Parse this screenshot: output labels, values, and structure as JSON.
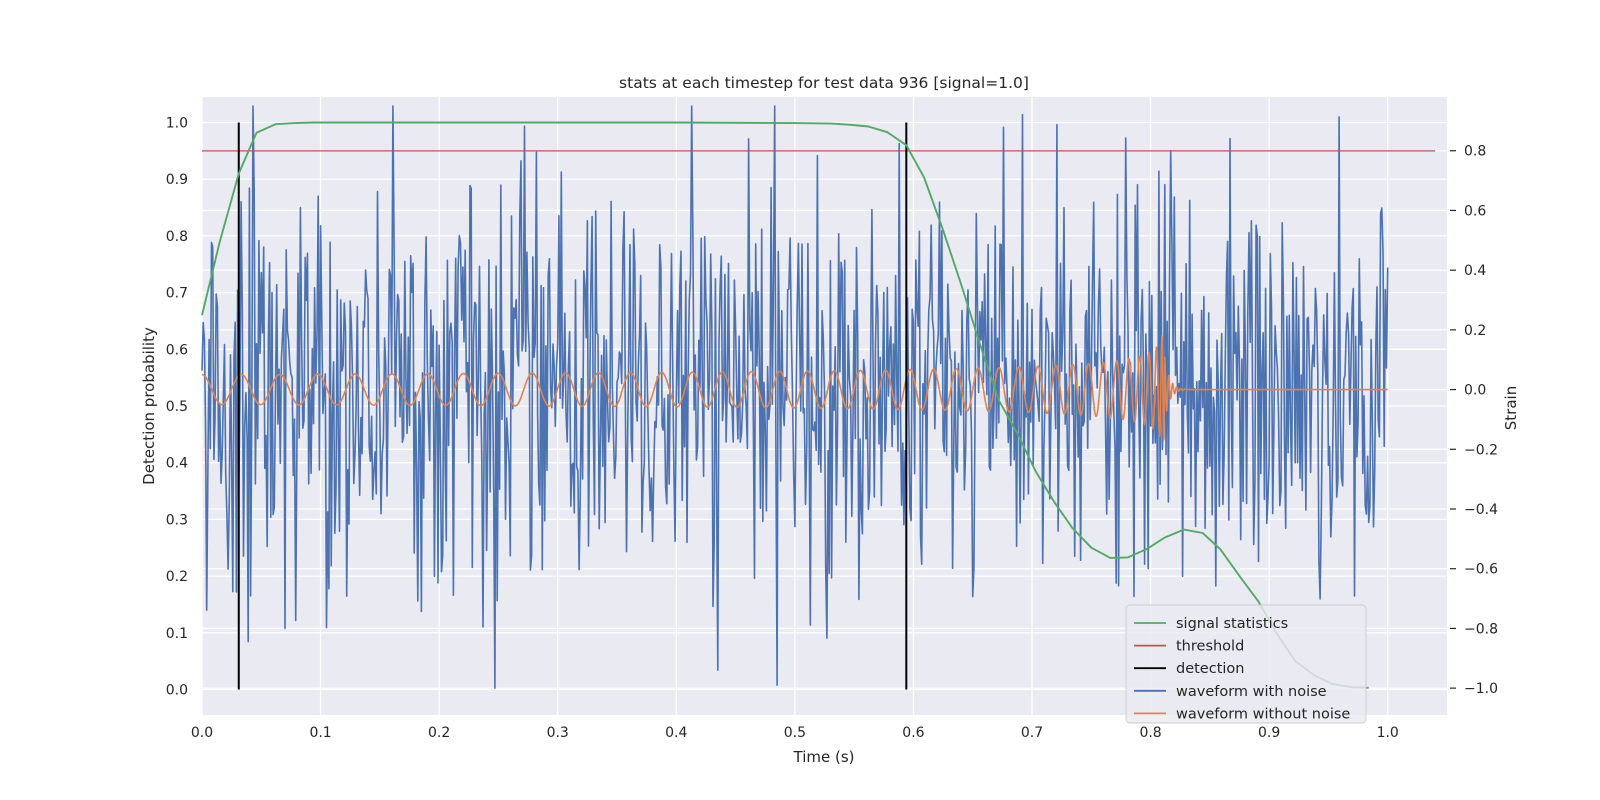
{
  "chart_data": {
    "type": "line",
    "title": "stats at each timestep for test data 936 [signal=1.0]",
    "xlabel": "Time (s)",
    "ylabel": "Detection probability",
    "y2label": "Strain",
    "xlim": [
      0.0,
      1.05
    ],
    "ylim": [
      -0.045,
      1.045
    ],
    "y2lim": [
      -1.09,
      0.98
    ],
    "xticks": [
      "0.0",
      "0.1",
      "0.2",
      "0.3",
      "0.4",
      "0.5",
      "0.6",
      "0.7",
      "0.8",
      "0.9",
      "1.0"
    ],
    "yticks": [
      "0.0",
      "0.1",
      "0.2",
      "0.3",
      "0.4",
      "0.5",
      "0.6",
      "0.7",
      "0.8",
      "0.9",
      "1.0"
    ],
    "y2ticks": [
      "−1.0",
      "−0.8",
      "−0.6",
      "−0.4",
      "−0.2",
      "0.0",
      "0.2",
      "0.4",
      "0.6",
      "0.8"
    ],
    "grid": true,
    "legend_position": "lower-right",
    "colors": {
      "background": "#eaeaf2",
      "grid": "#ffffff",
      "signal_statistics": "#55a868",
      "threshold": "#c44e52",
      "detection": "#000000",
      "waveform_with_noise": "#4c72b0",
      "waveform_without_noise": "#dd8452"
    },
    "series": [
      {
        "name": "signal statistics",
        "axis": "left",
        "x": [
          0.0,
          0.015,
          0.031,
          0.046,
          0.062,
          0.078,
          0.094,
          0.11,
          0.2,
          0.3,
          0.4,
          0.5,
          0.531,
          0.547,
          0.562,
          0.578,
          0.594,
          0.609,
          0.625,
          0.641,
          0.656,
          0.672,
          0.688,
          0.703,
          0.719,
          0.734,
          0.75,
          0.766,
          0.781,
          0.797,
          0.812,
          0.828,
          0.844,
          0.859,
          0.875,
          0.891,
          0.906,
          0.922,
          0.938,
          0.953,
          0.969,
          0.984
        ],
        "y": [
          0.66,
          0.79,
          0.91,
          0.982,
          0.997,
          0.999,
          1.0,
          1.0,
          1.0,
          1.0,
          1.0,
          0.999,
          0.998,
          0.996,
          0.993,
          0.983,
          0.96,
          0.903,
          0.81,
          0.71,
          0.61,
          0.51,
          0.45,
          0.385,
          0.33,
          0.285,
          0.25,
          0.232,
          0.233,
          0.248,
          0.268,
          0.282,
          0.276,
          0.247,
          0.2,
          0.155,
          0.1,
          0.05,
          0.025,
          0.01,
          0.004,
          0.003
        ]
      },
      {
        "name": "threshold",
        "axis": "left",
        "x": [
          0.0,
          1.04
        ],
        "y": [
          0.95,
          0.95
        ]
      },
      {
        "name": "detection",
        "axis": "left",
        "x_lines": [
          0.031,
          0.594
        ],
        "y_range": [
          0.0,
          1.0
        ]
      },
      {
        "name": "waveform with noise",
        "axis": "right",
        "type": "noise",
        "x_range": [
          0.0,
          1.0
        ],
        "y_range": [
          -1.0,
          0.95
        ]
      },
      {
        "name": "waveform without noise",
        "axis": "right",
        "type": "chirp",
        "x_range": [
          0.0,
          1.0
        ],
        "amplitude_start": 0.05,
        "amplitude_peak": 0.18,
        "merger_x": 0.812,
        "amplitude_after": 0.0
      }
    ]
  }
}
